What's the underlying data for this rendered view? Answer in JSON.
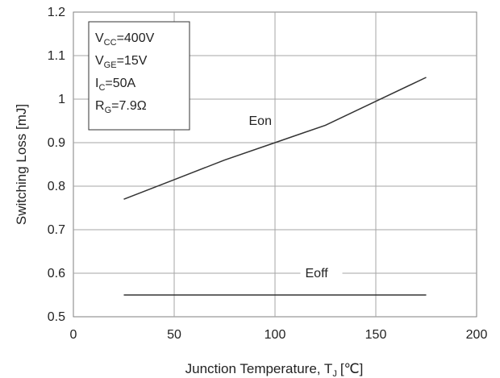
{
  "chart_data": {
    "type": "line",
    "xlabel": "Junction Temperature, T",
    "xlabel_sub": "J",
    "xlabel_unit": "[℃]",
    "ylabel": "Switching Loss [mJ]",
    "xlim": [
      0,
      200
    ],
    "ylim": [
      0.5,
      1.2
    ],
    "xticks": [
      0,
      50,
      100,
      150,
      200
    ],
    "yticks": [
      0.5,
      0.6,
      0.7,
      0.8,
      0.9,
      1,
      1.1,
      1.2
    ],
    "grid": true,
    "series": [
      {
        "name": "Eon",
        "x": [
          25,
          50,
          75,
          100,
          125,
          150,
          175
        ],
        "y": [
          0.77,
          0.815,
          0.86,
          0.9,
          0.94,
          0.995,
          1.05
        ]
      },
      {
        "name": "Eoff",
        "x": [
          25,
          50,
          75,
          100,
          125,
          150,
          175
        ],
        "y": [
          0.55,
          0.55,
          0.55,
          0.55,
          0.55,
          0.55,
          0.55
        ]
      }
    ],
    "conditions": [
      {
        "main": "V",
        "sub": "CC",
        "rest": "=400V"
      },
      {
        "main": "V",
        "sub": "GE",
        "rest": "=15V"
      },
      {
        "main": "I",
        "sub": "C",
        "rest": "=50A"
      },
      {
        "main": "R",
        "sub": "G",
        "rest": "=7.9Ω"
      }
    ]
  }
}
